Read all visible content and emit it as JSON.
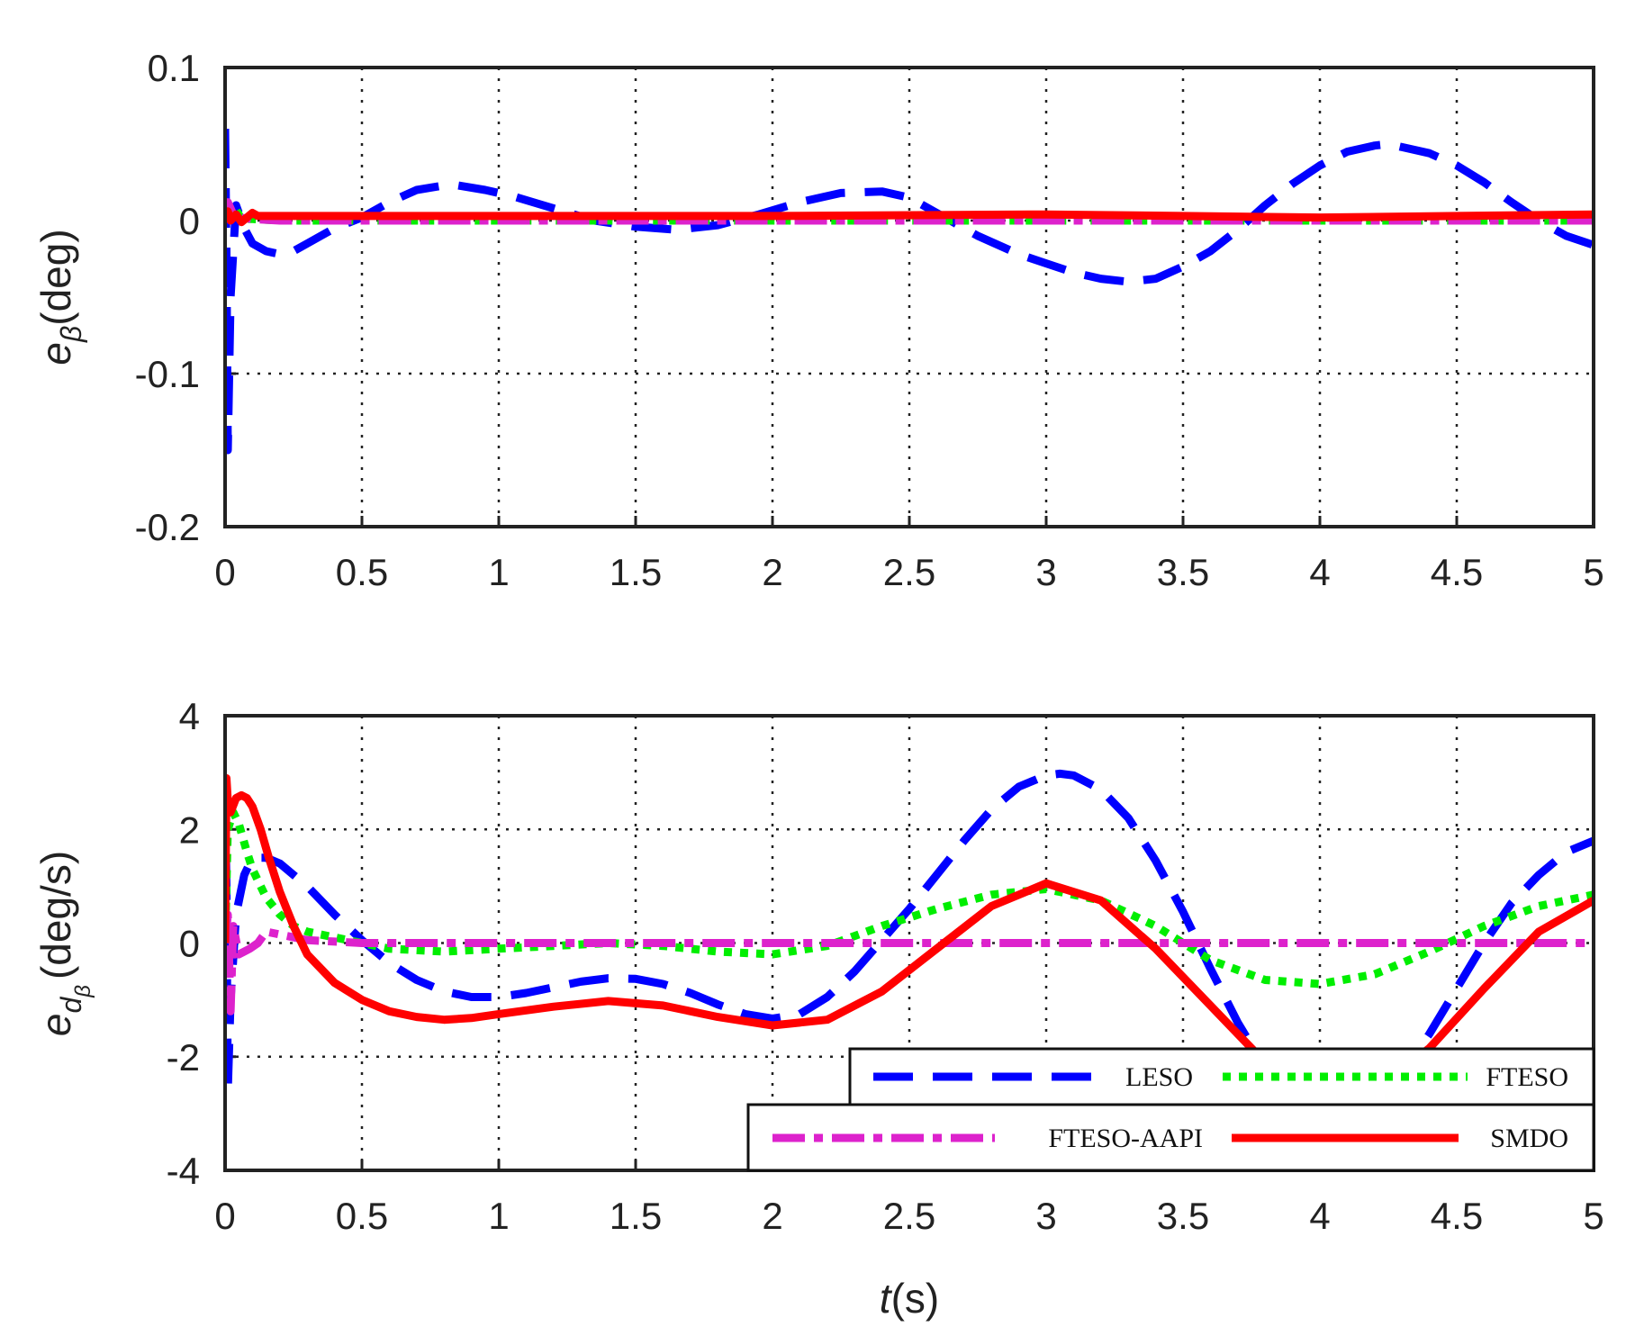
{
  "colors": {
    "LESO": "#0000ff",
    "FTESO": "#00ee00",
    "FTESO-AAPI": "#dd22cc",
    "SMDO": "#ff0000"
  },
  "chart_data": [
    {
      "type": "line",
      "ylabel_main": "e",
      "ylabel_sub": "β",
      "ylabel_unit": "(deg)",
      "xlim": [
        0,
        5
      ],
      "ylim": [
        -0.2,
        0.1
      ],
      "xticks": [
        "0",
        "0.5",
        "1",
        "1.5",
        "2",
        "2.5",
        "3",
        "3.5",
        "4",
        "4.5",
        "5"
      ],
      "yticks": [
        "0.1",
        "0",
        "-0.1",
        "-0.2"
      ],
      "grid": true,
      "series": [
        {
          "name": "LESO",
          "x": [
            0,
            0.005,
            0.01,
            0.02,
            0.04,
            0.07,
            0.1,
            0.15,
            0.2,
            0.25,
            0.3,
            0.4,
            0.5,
            0.6,
            0.7,
            0.8,
            0.85,
            0.95,
            1.05,
            1.2,
            1.35,
            1.5,
            1.65,
            1.8,
            1.95,
            2.1,
            2.25,
            2.4,
            2.5,
            2.6,
            2.75,
            2.9,
            3.0,
            3.1,
            3.2,
            3.3,
            3.4,
            3.5,
            3.6,
            3.7,
            3.8,
            3.9,
            4.0,
            4.1,
            4.2,
            4.25,
            4.3,
            4.4,
            4.5,
            4.6,
            4.7,
            4.8,
            4.9,
            5.0
          ],
          "y": [
            0.06,
            -0.02,
            -0.15,
            -0.05,
            0.01,
            -0.005,
            -0.015,
            -0.02,
            -0.022,
            -0.02,
            -0.015,
            -0.005,
            0.002,
            0.012,
            0.02,
            0.023,
            0.023,
            0.02,
            0.016,
            0.008,
            0.0,
            -0.004,
            -0.006,
            -0.003,
            0.004,
            0.012,
            0.018,
            0.019,
            0.015,
            0.005,
            -0.01,
            -0.022,
            -0.028,
            -0.034,
            -0.038,
            -0.04,
            -0.038,
            -0.03,
            -0.02,
            -0.006,
            0.01,
            0.024,
            0.036,
            0.045,
            0.049,
            0.05,
            0.048,
            0.044,
            0.036,
            0.025,
            0.012,
            0.0,
            -0.01,
            -0.016
          ]
        },
        {
          "name": "FTESO",
          "x": [
            0,
            0.01,
            0.02,
            0.04,
            0.06,
            0.1,
            0.2,
            1,
            2,
            3,
            4,
            5
          ],
          "y": [
            0.0,
            0.008,
            0.002,
            0.007,
            0.001,
            0.001,
            0.0,
            0.0,
            0.0,
            0.0,
            0.0,
            0.0
          ]
        },
        {
          "name": "FTESO-AAPI",
          "x": [
            0,
            0.01,
            0.03,
            0.05,
            0.1,
            0.2,
            1,
            2,
            3,
            4,
            5
          ],
          "y": [
            0.0,
            0.012,
            0.004,
            0.002,
            0.001,
            0.0,
            0.0,
            0.0,
            0.0,
            0.0,
            0.0
          ]
        },
        {
          "name": "SMDO",
          "x": [
            0,
            0.01,
            0.02,
            0.04,
            0.06,
            0.08,
            0.1,
            0.12,
            0.2,
            1,
            2,
            3,
            3.5,
            4,
            4.5,
            5
          ],
          "y": [
            0.0,
            0.006,
            0.0,
            0.004,
            -0.001,
            0.002,
            0.005,
            0.003,
            0.003,
            0.003,
            0.003,
            0.004,
            0.003,
            0.002,
            0.003,
            0.004
          ]
        }
      ]
    },
    {
      "type": "line",
      "ylabel_main": "e",
      "ylabel_sub": "d",
      "ylabel_subsub": "β",
      "ylabel_unit": "(deg/s)",
      "xlabel_var": "t",
      "xlabel_unit": "(s)",
      "xlim": [
        0,
        5
      ],
      "ylim": [
        -4,
        4
      ],
      "xticks": [
        "0",
        "0.5",
        "1",
        "1.5",
        "2",
        "2.5",
        "3",
        "3.5",
        "4",
        "4.5",
        "5"
      ],
      "yticks": [
        "4",
        "2",
        "0",
        "-2",
        "-4"
      ],
      "grid": true,
      "legend_placement": "bottom-right",
      "series": [
        {
          "name": "LESO",
          "x": [
            0,
            0.005,
            0.01,
            0.02,
            0.04,
            0.07,
            0.1,
            0.15,
            0.2,
            0.25,
            0.3,
            0.4,
            0.5,
            0.6,
            0.7,
            0.8,
            0.9,
            1.0,
            1.1,
            1.2,
            1.3,
            1.4,
            1.5,
            1.6,
            1.7,
            1.8,
            1.9,
            2.0,
            2.1,
            2.2,
            2.3,
            2.4,
            2.5,
            2.6,
            2.7,
            2.8,
            2.9,
            3.0,
            3.05,
            3.1,
            3.2,
            3.3,
            3.4,
            3.5,
            3.6,
            3.7,
            3.8,
            3.9,
            4.0,
            4.1,
            4.2,
            4.3,
            4.4,
            4.5,
            4.6,
            4.7,
            4.8,
            4.9,
            5.0
          ],
          "y": [
            2.5,
            1.0,
            -2.6,
            -1.0,
            0.5,
            1.2,
            1.5,
            1.5,
            1.4,
            1.2,
            1.0,
            0.5,
            0.05,
            -0.35,
            -0.65,
            -0.85,
            -0.95,
            -0.95,
            -0.88,
            -0.78,
            -0.68,
            -0.62,
            -0.63,
            -0.72,
            -0.88,
            -1.08,
            -1.25,
            -1.33,
            -1.25,
            -0.95,
            -0.5,
            0.05,
            0.6,
            1.2,
            1.8,
            2.35,
            2.75,
            2.95,
            2.98,
            2.95,
            2.7,
            2.2,
            1.45,
            0.55,
            -0.45,
            -1.4,
            -2.2,
            -2.8,
            -3.1,
            -3.1,
            -2.8,
            -2.3,
            -1.6,
            -0.8,
            0.0,
            0.7,
            1.2,
            1.6,
            1.8
          ]
        },
        {
          "name": "FTESO",
          "x": [
            0,
            0.01,
            0.03,
            0.05,
            0.08,
            0.1,
            0.15,
            0.2,
            0.25,
            0.3,
            0.4,
            0.5,
            0.6,
            0.8,
            1.0,
            1.2,
            1.4,
            1.6,
            1.8,
            2.0,
            2.2,
            2.4,
            2.6,
            2.8,
            3.0,
            3.2,
            3.4,
            3.6,
            3.8,
            4.0,
            4.2,
            4.4,
            4.6,
            4.8,
            5.0
          ],
          "y": [
            0.0,
            2.0,
            2.3,
            2.1,
            1.6,
            1.3,
            0.8,
            0.5,
            0.3,
            0.2,
            0.1,
            0.0,
            -0.1,
            -0.15,
            -0.1,
            -0.05,
            0.0,
            -0.05,
            -0.15,
            -0.2,
            -0.05,
            0.3,
            0.6,
            0.85,
            0.95,
            0.75,
            0.3,
            -0.3,
            -0.65,
            -0.72,
            -0.55,
            -0.15,
            0.3,
            0.65,
            0.85
          ]
        },
        {
          "name": "FTESO-AAPI",
          "x": [
            0,
            0.01,
            0.02,
            0.03,
            0.05,
            0.07,
            0.09,
            0.12,
            0.15,
            0.2,
            0.3,
            0.5,
            1,
            2,
            3,
            4,
            5
          ],
          "y": [
            0.0,
            0.5,
            -1.2,
            0.3,
            -0.2,
            -0.15,
            -0.1,
            0.0,
            0.2,
            0.15,
            0.05,
            0.0,
            0.0,
            0.0,
            0.0,
            0.0,
            0.0
          ]
        },
        {
          "name": "SMDO",
          "x": [
            0,
            0.005,
            0.01,
            0.02,
            0.04,
            0.06,
            0.08,
            0.1,
            0.13,
            0.16,
            0.2,
            0.25,
            0.3,
            0.4,
            0.5,
            0.6,
            0.7,
            0.8,
            0.9,
            1.0,
            1.2,
            1.4,
            1.6,
            1.8,
            2.0,
            2.2,
            2.4,
            2.6,
            2.8,
            3.0,
            3.2,
            3.4,
            3.6,
            3.8,
            4.0,
            4.2,
            4.4,
            4.6,
            4.8,
            5.0
          ],
          "y": [
            0.0,
            2.9,
            2.5,
            2.3,
            2.55,
            2.6,
            2.55,
            2.4,
            2.0,
            1.5,
            0.9,
            0.3,
            -0.2,
            -0.7,
            -1.0,
            -1.2,
            -1.3,
            -1.35,
            -1.32,
            -1.25,
            -1.12,
            -1.02,
            -1.1,
            -1.3,
            -1.45,
            -1.35,
            -0.85,
            -0.1,
            0.65,
            1.05,
            0.75,
            -0.1,
            -1.1,
            -2.1,
            -2.85,
            -2.6,
            -1.85,
            -0.8,
            0.2,
            0.75
          ]
        }
      ]
    }
  ]
}
